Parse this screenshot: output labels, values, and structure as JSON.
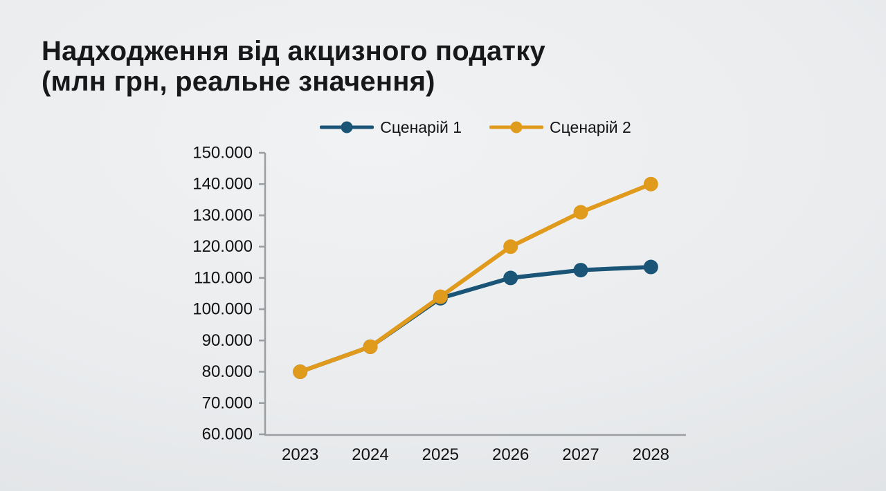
{
  "title": {
    "line1": "Надходження від акцизного податку",
    "line2": "(млн грн, реальне значення)"
  },
  "chart_data": {
    "type": "line",
    "title": "Надходження від акцизного податку (млн грн, реальне значення)",
    "x_tick_labels": [
      "2023",
      "2024",
      "2025",
      "2026",
      "2027",
      "2028"
    ],
    "series": [
      {
        "name": "Сценарій 1",
        "color": "#1A5577",
        "values": [
          80000,
          88000,
          103500,
          110000,
          112500,
          113500
        ]
      },
      {
        "name": "Сценарій 2",
        "color": "#E09A1C",
        "values": [
          80000,
          88000,
          104000,
          120000,
          131000,
          140000
        ]
      }
    ],
    "ylim": [
      60000,
      150000
    ],
    "y_tick_values": [
      60000,
      70000,
      80000,
      90000,
      100000,
      110000,
      120000,
      130000,
      140000,
      150000
    ],
    "y_tick_labels": [
      "60.000",
      "70.000",
      "80.000",
      "90.000",
      "100.000",
      "110.000",
      "120.000",
      "130.000",
      "140.000",
      "150.000"
    ],
    "xlabel": "",
    "ylabel": "",
    "grid": false,
    "legend_position": "top",
    "axis_color": "#9B9EA1",
    "text_color": "#121212"
  }
}
